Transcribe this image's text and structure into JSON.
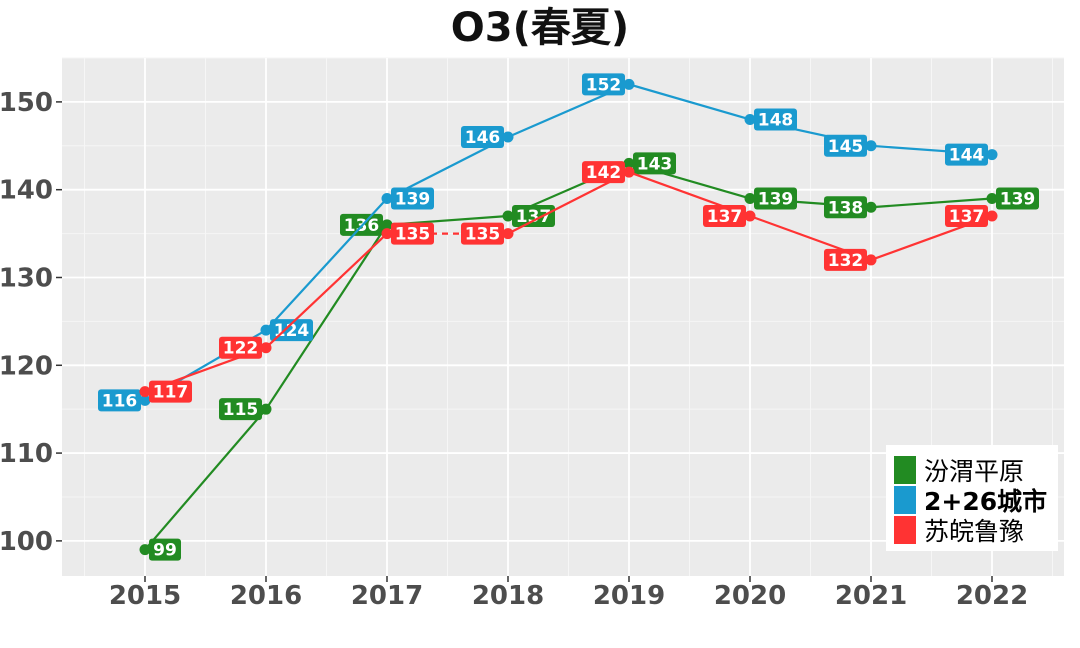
{
  "chart_data": {
    "type": "line",
    "title": "O3(春夏)",
    "xlabel": "",
    "ylabel": "",
    "categories": [
      "2015",
      "2016",
      "2017",
      "2018",
      "2019",
      "2020",
      "2021",
      "2022"
    ],
    "ylim": [
      96,
      155
    ],
    "yticks": [
      100,
      110,
      120,
      130,
      140,
      150
    ],
    "grid": true,
    "legend_position": "bottom-right",
    "series": [
      {
        "name": "汾渭平原",
        "color": "#228B22",
        "values": [
          99,
          115,
          136,
          137,
          143,
          139,
          138,
          139
        ],
        "label_side": [
          "right",
          "left",
          "left",
          "right",
          "right",
          "right",
          "left",
          "right"
        ]
      },
      {
        "name": "2+26城市",
        "color": "#1A9ACF",
        "values": [
          116,
          124,
          139,
          146,
          152,
          148,
          145,
          144
        ],
        "label_side": [
          "left",
          "right",
          "right",
          "left",
          "left",
          "right",
          "left",
          "left"
        ]
      },
      {
        "name": "苏皖鲁豫",
        "color": "#FF3333",
        "values": [
          117,
          122,
          135,
          135,
          142,
          137,
          132,
          137
        ],
        "label_side": [
          "right",
          "left",
          "right",
          "left",
          "left",
          "left",
          "left",
          "left"
        ],
        "dashed_segments": [
          2
        ]
      }
    ]
  }
}
